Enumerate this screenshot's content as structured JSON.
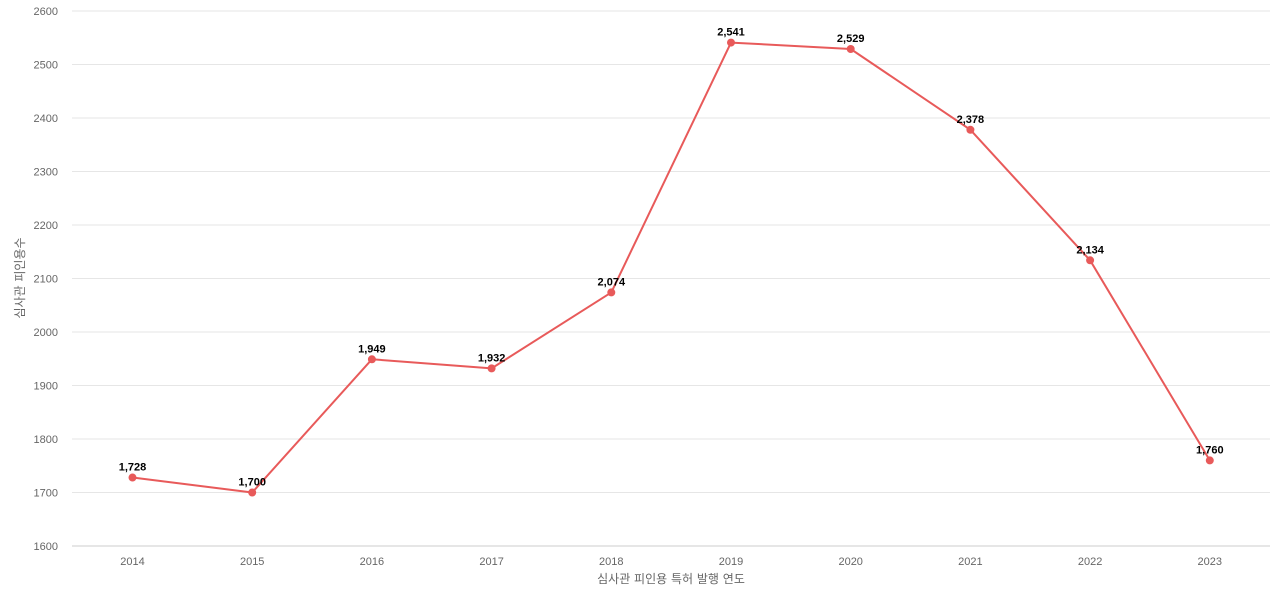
{
  "chart_data": {
    "type": "line",
    "title": "",
    "xlabel": "심사관 피인용 특허 발행 연도",
    "ylabel": "심사관 피인용수",
    "categories": [
      "2014",
      "2015",
      "2016",
      "2017",
      "2018",
      "2019",
      "2020",
      "2021",
      "2022",
      "2023"
    ],
    "series": [
      {
        "values": [
          1728,
          1700,
          1949,
          1932,
          2074,
          2541,
          2529,
          2378,
          2134,
          1760
        ],
        "data_labels": [
          "1,728",
          "1,700",
          "1,949",
          "1,932",
          "2,074",
          "2,541",
          "2,529",
          "2,378",
          "2,134",
          "1,760"
        ],
        "color": "#e85a5a"
      }
    ],
    "ylim": [
      1600,
      2600
    ],
    "yticks": [
      "1600",
      "1700",
      "1800",
      "1900",
      "2000",
      "2100",
      "2200",
      "2300",
      "2400",
      "2500",
      "2600"
    ],
    "grid": true,
    "legend": "none"
  }
}
